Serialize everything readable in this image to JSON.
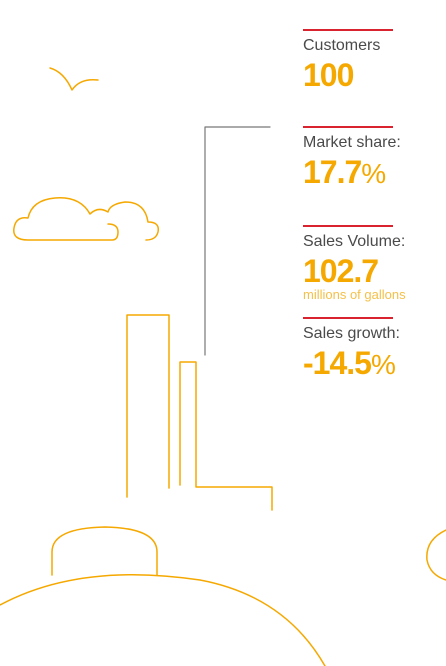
{
  "stats": [
    {
      "label": "Customers",
      "value": "100"
    },
    {
      "label": "Market share:",
      "value": "17.7",
      "unit": "%"
    },
    {
      "label": "Sales Volume:",
      "value": "102.7",
      "note": "millions of gallons"
    },
    {
      "label": "Sales growth:",
      "value": "-14.5",
      "unit": "%"
    }
  ]
}
